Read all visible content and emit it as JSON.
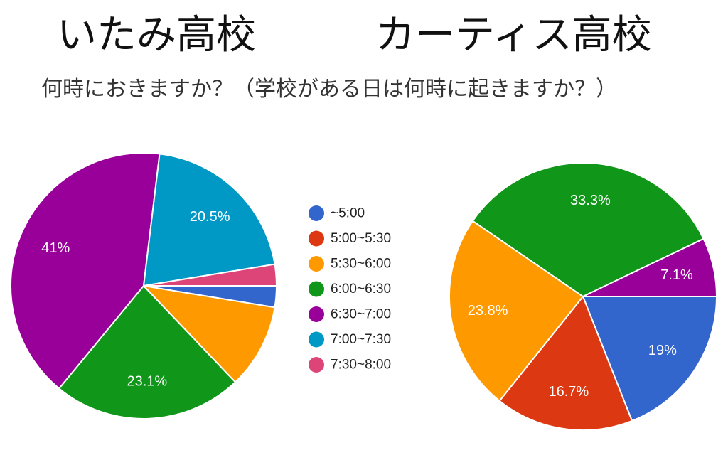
{
  "chart_data": [
    {
      "type": "pie",
      "title": "いたみ高校",
      "categories": [
        "~5:00",
        "5:00~5:30",
        "5:30~6:00",
        "6:00~6:30",
        "6:30~7:00",
        "7:00~7:30",
        "7:30~8:00"
      ],
      "values": [
        2.6,
        0,
        10.3,
        23.1,
        41,
        20.5,
        2.6
      ],
      "data_labels": [
        "",
        "",
        "",
        "23.1%",
        "41%",
        "20.5%",
        ""
      ],
      "start_angle": "3 o'clock, clockwise"
    },
    {
      "type": "pie",
      "title": "カーティス高校",
      "categories": [
        "~5:00",
        "5:00~5:30",
        "5:30~6:00",
        "6:00~6:30",
        "6:30~7:00",
        "7:00~7:30",
        "7:30~8:00"
      ],
      "values": [
        19,
        16.7,
        23.8,
        33.3,
        7.1,
        0,
        0
      ],
      "data_labels": [
        "19%",
        "16.7%",
        "23.8%",
        "33.3%",
        "7.1%",
        "",
        ""
      ],
      "start_angle": "3 o'clock, clockwise"
    }
  ],
  "subtitle": "何時におきますか？（学校がある日は何時に起きますか？）",
  "legend": {
    "placement": "center",
    "items": [
      "~5:00",
      "5:00~5:30",
      "5:30~6:00",
      "6:00~6:30",
      "6:30~7:00",
      "7:00~7:30",
      "7:30~8:00"
    ]
  },
  "colors": [
    "#3366cc",
    "#dc3912",
    "#ff9900",
    "#109618",
    "#990099",
    "#0099c6",
    "#dd4477"
  ]
}
